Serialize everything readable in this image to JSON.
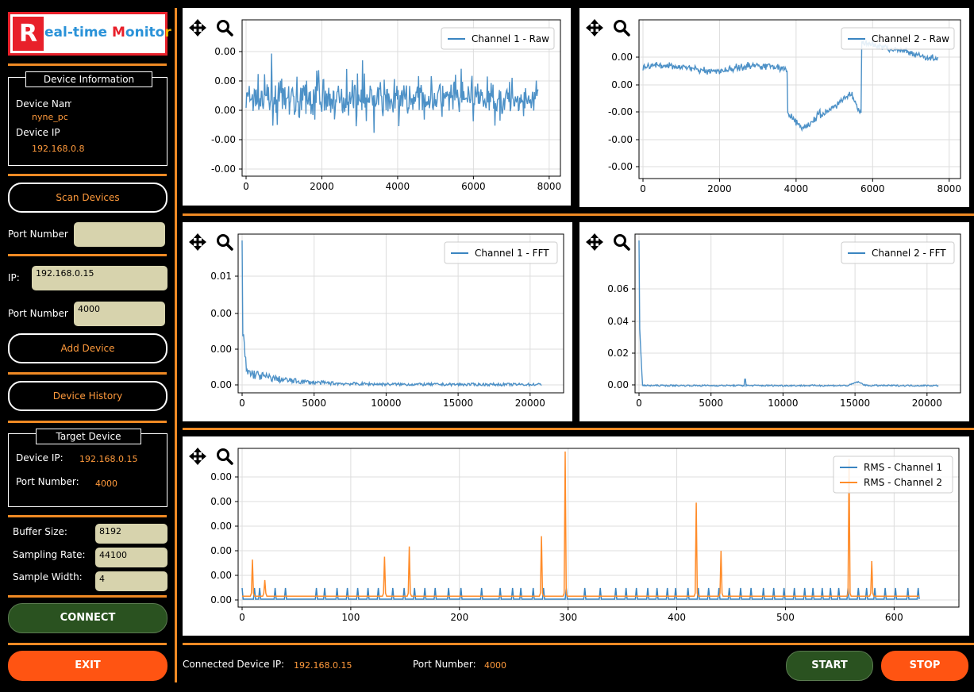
{
  "logo": {
    "letter": "R",
    "rest_a": "eal-time ",
    "rest_b": "M",
    "rest_c": "onito",
    "rest_d": "r"
  },
  "device_info": {
    "title": "Device Information",
    "name_label": "Device Name",
    "name_value": "nyne_pc",
    "ip_label": "Device IP",
    "ip_value": "192.168.0.8"
  },
  "scan_button": "Scan Devices",
  "scan_port": {
    "label": "Port Number",
    "value": ""
  },
  "manual": {
    "ip_label": "IP:",
    "ip_value": "192.168.0.15",
    "port_label": "Port Number",
    "port_value": "4000",
    "add_button": "Add Device"
  },
  "history_button": "Device History",
  "target": {
    "title": "Target Device",
    "ip_label": "Device IP:",
    "ip_value": "192.168.0.15",
    "port_label": "Port Number:",
    "port_value": "4000"
  },
  "settings": {
    "buffer_label": "Buffer Size:",
    "buffer_value": "8192",
    "rate_label": "Sampling Rate:",
    "rate_value": "44100",
    "width_label": "Sample Width:",
    "width_value": "4"
  },
  "connect_button": "CONNECT",
  "exit_button": "EXIT",
  "status": {
    "ip_label": "Connected Device IP:",
    "ip_value": "192.168.0.15",
    "port_label": "Port Number:",
    "port_value": "4000"
  },
  "start_button": "START",
  "stop_button": "STOP",
  "colors": {
    "accent": "#f08a24",
    "series1": "#3a85c1",
    "series2": "#ff8c2a",
    "green": "#2a5220",
    "red": "#ff5412"
  },
  "icons": [
    "move-icon",
    "zoom-icon"
  ],
  "chart_data": [
    {
      "type": "line",
      "legend": "Channel 1 - Raw",
      "x_ticks": [
        "0",
        "2000",
        "4000",
        "6000",
        "8000"
      ],
      "x_range": [
        0,
        8192
      ],
      "y_ticks": [
        "0.00",
        "0.00",
        "0.00",
        "-0.00",
        "-0.00"
      ],
      "profile": "raw1"
    },
    {
      "type": "line",
      "legend": "Channel 2 - Raw",
      "x_ticks": [
        "0",
        "2000",
        "4000",
        "6000",
        "8000"
      ],
      "x_range": [
        0,
        8192
      ],
      "y_ticks": [
        "0.00",
        "0.00",
        "-0.00",
        "-0.00",
        "-0.00"
      ],
      "profile": "raw2"
    },
    {
      "type": "line",
      "legend": "Channel 1 - FFT",
      "x_ticks": [
        "0",
        "5000",
        "10000",
        "15000",
        "20000"
      ],
      "x_range": [
        0,
        22050
      ],
      "y_ticks": [
        "0.01",
        "0.00",
        "0.00",
        "0.00"
      ],
      "profile": "fft1"
    },
    {
      "type": "line",
      "legend": "Channel 2 - FFT",
      "x_ticks": [
        "0",
        "5000",
        "10000",
        "15000",
        "20000"
      ],
      "x_range": [
        0,
        22050
      ],
      "y_ticks": [
        "0.06",
        "0.04",
        "0.02",
        "0.00"
      ],
      "profile": "fft2"
    },
    {
      "type": "line",
      "legends": [
        "RMS - Channel 1",
        "RMS - Channel 2"
      ],
      "x_ticks": [
        "0",
        "100",
        "200",
        "300",
        "400",
        "500",
        "600"
      ],
      "x_range": [
        0,
        656
      ],
      "y_ticks": [
        "0.00",
        "0.00",
        "0.00",
        "0.00",
        "0.00",
        "0.00"
      ],
      "ch1_spikes": [
        0,
        12,
        17,
        32,
        42,
        72,
        80,
        92,
        102,
        112,
        122,
        132,
        146,
        157,
        167,
        177,
        187,
        200,
        212,
        232,
        250,
        262,
        270,
        282,
        292,
        314,
        332,
        347,
        362,
        372,
        382,
        393,
        402,
        412,
        420,
        432,
        442,
        452,
        462,
        472,
        483,
        493,
        505,
        515,
        525,
        535,
        545,
        553,
        562,
        570,
        578,
        587,
        597,
        605,
        613,
        623,
        633,
        645,
        655
      ],
      "ch2_spikes": [
        [
          10,
          0.26
        ],
        [
          22,
          0.12
        ],
        [
          138,
          0.28
        ],
        [
          162,
          0.35
        ],
        [
          290,
          0.42
        ],
        [
          313,
          1.0
        ],
        [
          440,
          0.65
        ],
        [
          464,
          0.32
        ],
        [
          588,
          0.95
        ],
        [
          610,
          0.25
        ]
      ]
    }
  ]
}
